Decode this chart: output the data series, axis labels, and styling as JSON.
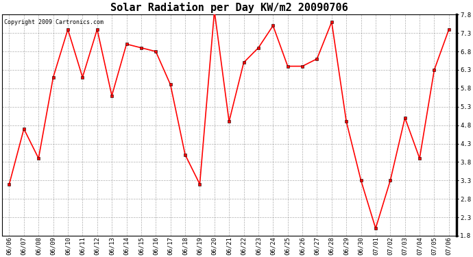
{
  "title": "Solar Radiation per Day KW/m2 20090706",
  "copyright_text": "Copyright 2009 Cartronics.com",
  "dates": [
    "06/06",
    "06/07",
    "06/08",
    "06/09",
    "06/10",
    "06/11",
    "06/12",
    "06/13",
    "06/14",
    "06/15",
    "06/16",
    "06/17",
    "06/18",
    "06/19",
    "06/20",
    "06/21",
    "06/22",
    "06/23",
    "06/24",
    "06/25",
    "06/26",
    "06/27",
    "06/28",
    "06/29",
    "06/30",
    "07/01",
    "07/02",
    "07/03",
    "07/04",
    "07/05",
    "07/06"
  ],
  "values": [
    3.2,
    4.7,
    3.9,
    6.1,
    7.4,
    6.1,
    7.4,
    5.6,
    7.0,
    6.9,
    6.8,
    5.9,
    4.0,
    3.2,
    7.9,
    4.9,
    6.5,
    6.9,
    7.5,
    6.4,
    6.4,
    6.6,
    7.6,
    4.9,
    3.3,
    2.0,
    3.3,
    5.0,
    3.9,
    6.3,
    7.4
  ],
  "ylim": [
    1.8,
    7.8
  ],
  "yticks": [
    1.8,
    2.3,
    2.8,
    3.3,
    3.8,
    4.3,
    4.8,
    5.3,
    5.8,
    6.3,
    6.8,
    7.3,
    7.8
  ],
  "line_color": "red",
  "marker": "s",
  "marker_size": 2.5,
  "line_width": 1.2,
  "bg_color": "#ffffff",
  "grid_color": "#aaaaaa",
  "title_fontsize": 11,
  "tick_fontsize": 6.5,
  "copyright_fontsize": 6
}
